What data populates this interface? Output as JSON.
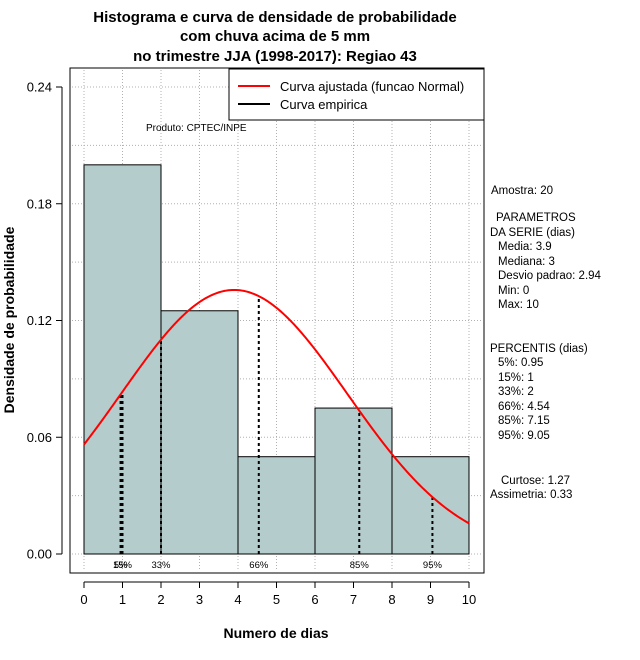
{
  "chart_data": {
    "type": "bar",
    "title_lines": [
      "Histograma e curva de densidade de probabilidade",
      "com chuva acima de 5 mm",
      "no trimestre JJA (1998-2017): Regiao 43"
    ],
    "xlabel": "Numero de dias",
    "ylabel": "Densidade de probabilidade",
    "xlim": [
      0,
      10
    ],
    "ylim": [
      0,
      0.24
    ],
    "xticks": [
      0,
      1,
      2,
      3,
      4,
      5,
      6,
      7,
      8,
      9,
      10
    ],
    "yticks": [
      "0.00",
      "0.06",
      "0.12",
      "0.18",
      "0.24"
    ],
    "grid": true,
    "bin_edges": [
      0,
      2,
      4,
      6,
      8,
      10
    ],
    "densities": [
      0.2,
      0.125,
      0.05,
      0.075,
      0.05
    ],
    "bar_color": "#b5cccc",
    "normal_fit": {
      "mean": 3.9,
      "sd": 2.94,
      "color": "#ff0000"
    },
    "legend": {
      "position": "top-right",
      "entries": [
        {
          "label": "Curva ajustada (funcao Normal)",
          "color": "#ff0000"
        },
        {
          "label": "Curva empirica",
          "color": "#000000"
        }
      ]
    },
    "annotation": "Produto: CPTEC/INPE",
    "percentiles": [
      {
        "x": 0.95,
        "label": "5%"
      },
      {
        "x": 1.0,
        "label": "15%"
      },
      {
        "x": 2.0,
        "label": "33%"
      },
      {
        "x": 4.54,
        "label": "66%"
      },
      {
        "x": 7.15,
        "label": "85%"
      },
      {
        "x": 9.05,
        "label": "95%"
      }
    ]
  },
  "side_panel": {
    "amostra": "Amostra: 20",
    "param_header_1": "PARAMETROS",
    "param_header_2": "DA SERIE (dias)",
    "media": "Media: 3.9",
    "mediana": "Mediana: 3",
    "desvio": "Desvio padrao: 2.94",
    "min": "Min: 0",
    "max": "Max: 10",
    "percentis_header": "PERCENTIS (dias)",
    "p5": "5%: 0.95",
    "p15": "15%: 1",
    "p33": "33%: 2",
    "p66": "66%: 4.54",
    "p85": "85%: 7.15",
    "p95": "95%: 9.05",
    "curtose": "Curtose: 1.27",
    "assimetria": "Assimetria: 0.33"
  }
}
